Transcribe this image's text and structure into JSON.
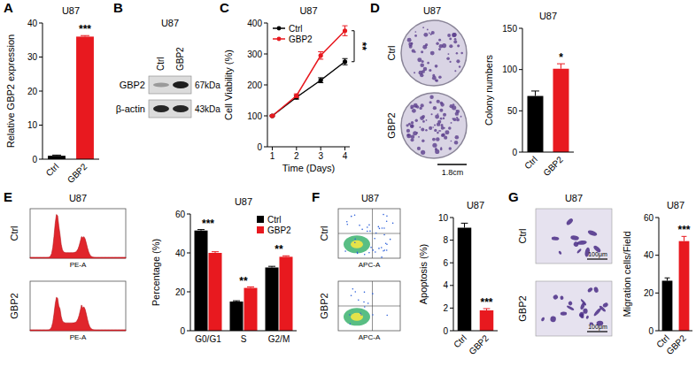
{
  "chart_data": [
    {
      "type": "bar",
      "panel_label": "A",
      "title": "U87",
      "y_label": "Relative GBP2 expression",
      "categories": [
        "Ctrl",
        "GBP2"
      ],
      "values": [
        1,
        36
      ],
      "errors": [
        0.2,
        0.3
      ],
      "colors": [
        "#000000",
        "#e8191f"
      ],
      "ylim": [
        0,
        40
      ],
      "yticks": [
        0,
        10,
        20,
        30,
        40
      ],
      "annotations": [
        "***"
      ]
    },
    {
      "type": "line",
      "panel_label": "C",
      "title": "U87",
      "x_label": "Time (Days)",
      "y_label": "Cell Viability (%)",
      "x": [
        1,
        2,
        3,
        4
      ],
      "series": [
        {
          "name": "Ctrl",
          "color": "#000000",
          "marker": "circle",
          "values": [
            100,
            160,
            215,
            275
          ],
          "errors": [
            2,
            6,
            8,
            10
          ]
        },
        {
          "name": "GBP2",
          "color": "#e8191f",
          "marker": "circle",
          "values": [
            100,
            165,
            295,
            375
          ],
          "errors": [
            2,
            6,
            12,
            16
          ]
        }
      ],
      "xlim": [
        0.8,
        4.2
      ],
      "xticks": [
        1,
        2,
        3,
        4
      ],
      "ylim": [
        0,
        400
      ],
      "yticks": [
        0,
        100,
        200,
        300,
        400
      ],
      "legend": "upper left",
      "annotations": [
        "**"
      ]
    },
    {
      "type": "bar",
      "title": "U87",
      "y_label": "Colony numbers",
      "categories": [
        "Ctrl",
        "GBP2"
      ],
      "values": [
        68,
        101
      ],
      "errors": [
        6,
        6
      ],
      "colors": [
        "#000000",
        "#e8191f"
      ],
      "ylim": [
        0,
        150
      ],
      "yticks": [
        0,
        50,
        100,
        150
      ],
      "annotations": [
        "*"
      ]
    },
    {
      "type": "bar",
      "title": "U87",
      "y_label": "Percentage (%)",
      "categories": [
        "G0/G1",
        "S",
        "G2/M"
      ],
      "series": [
        {
          "name": "Ctrl",
          "color": "#000000",
          "values": [
            51.5,
            15,
            32.5
          ],
          "errors": [
            0.5,
            0.4,
            0.6
          ]
        },
        {
          "name": "GBP2",
          "color": "#e8191f",
          "values": [
            40,
            22,
            38
          ],
          "errors": [
            0.6,
            0.5,
            0.5
          ]
        }
      ],
      "ylim": [
        0,
        60
      ],
      "yticks": [
        0,
        20,
        40,
        60
      ],
      "legend": "upper right",
      "annotations": [
        "***",
        "**",
        "**"
      ]
    },
    {
      "type": "bar",
      "title": "U87",
      "y_label": "Apoptosis (%)",
      "categories": [
        "Ctrl",
        "GBP2"
      ],
      "values": [
        9.1,
        1.8
      ],
      "errors": [
        0.4,
        0.15
      ],
      "colors": [
        "#000000",
        "#e8191f"
      ],
      "ylim": [
        0,
        10
      ],
      "yticks": [
        0,
        2,
        4,
        6,
        8,
        10
      ],
      "annotations": [
        "***"
      ]
    },
    {
      "type": "bar",
      "title": "U87",
      "y_label": "Migration cells/Field",
      "categories": [
        "Ctrl",
        "GBP2"
      ],
      "values": [
        26.5,
        47.5
      ],
      "errors": [
        1.5,
        2.5
      ],
      "colors": [
        "#000000",
        "#e8191f"
      ],
      "ylim": [
        0,
        60
      ],
      "yticks": [
        0,
        20,
        40,
        60
      ],
      "annotations": [
        "***"
      ]
    }
  ],
  "blot": {
    "panel_label": "B",
    "title": "U87",
    "lanes": [
      "Ctrl",
      "GBP2"
    ],
    "bands": [
      {
        "name": "GBP2",
        "size": "67kDa"
      },
      {
        "name": "β-actin",
        "size": "43kDa"
      }
    ]
  },
  "colony_plates": {
    "panel_label": "D",
    "title": "U87",
    "rows": [
      "Ctrl",
      "GBP2"
    ],
    "scale_bar": "1.8cm"
  },
  "cell_cycle_histograms": {
    "panel_label": "E",
    "title": "U87",
    "rows": [
      "Ctrl",
      "GBP2"
    ],
    "x_label": "PE-A"
  },
  "flow_plots": {
    "panel_label": "F",
    "title": "U87",
    "rows": [
      "Ctrl",
      "GBP2"
    ],
    "x_label": "APC-A"
  },
  "migration_images": {
    "panel_label": "G",
    "title": "U87",
    "rows": [
      "Ctrl",
      "GBP2"
    ],
    "scale_bar": "100μm"
  }
}
